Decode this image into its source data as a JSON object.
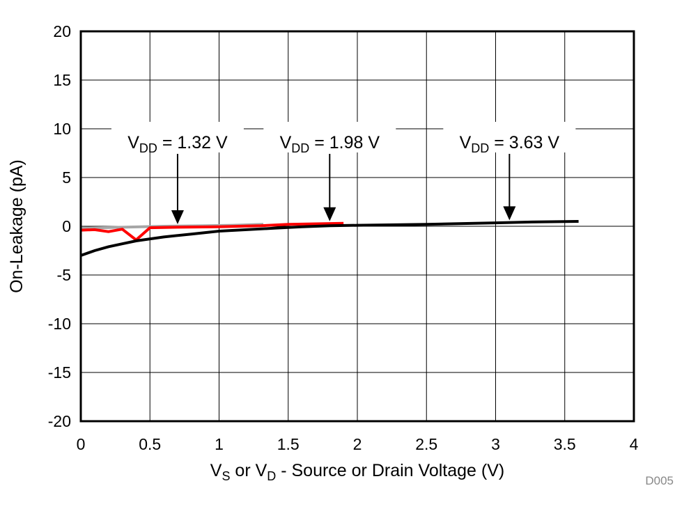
{
  "chart_data": {
    "type": "line",
    "title": "",
    "xlabel": {
      "pre": "V",
      "sub1": "S",
      "mid": " or V",
      "sub2": "D",
      "post": " - Source or Drain Voltage (V)"
    },
    "ylabel": "On-Leakage (pA)",
    "xlim": [
      0,
      4
    ],
    "ylim": [
      -20,
      20
    ],
    "xticks": [
      "0",
      "0.5",
      "1",
      "1.5",
      "2",
      "2.5",
      "3",
      "3.5",
      "4"
    ],
    "yticks": [
      "-20",
      "-15",
      "-10",
      "-5",
      "0",
      "5",
      "10",
      "15",
      "20"
    ],
    "grid": true,
    "watermark": "D005",
    "series": [
      {
        "color": "#a6a6a6",
        "x": [
          0,
          0.3,
          0.6,
          0.9,
          1.1,
          1.32
        ],
        "y": [
          -0.2,
          -0.1,
          0,
          0.05,
          0.1,
          0.2
        ]
      },
      {
        "color": "#ff0000",
        "x": [
          0,
          0.1,
          0.2,
          0.3,
          0.4,
          0.5,
          0.7,
          1.0,
          1.3,
          1.5,
          1.7,
          1.9
        ],
        "y": [
          -0.4,
          -0.35,
          -0.55,
          -0.3,
          -1.4,
          -0.15,
          -0.1,
          -0.05,
          0.05,
          0.2,
          0.25,
          0.3
        ]
      },
      {
        "color": "#000000",
        "x": [
          0,
          0.1,
          0.2,
          0.3,
          0.4,
          0.6,
          0.8,
          1.0,
          1.2,
          1.4,
          1.6,
          1.8,
          2.0,
          2.5,
          3.0,
          3.3,
          3.6
        ],
        "y": [
          -3.0,
          -2.5,
          -2.1,
          -1.8,
          -1.5,
          -1.1,
          -0.8,
          -0.5,
          -0.35,
          -0.2,
          -0.05,
          0.05,
          0.1,
          0.2,
          0.35,
          0.45,
          0.5
        ]
      }
    ],
    "annotations": [
      {
        "pre": "V",
        "sub": "DD",
        "post": " = 1.32 V",
        "x": 0.7,
        "y": 0,
        "label_y": 9
      },
      {
        "pre": "V",
        "sub": "DD",
        "post": " = 1.98 V",
        "x": 1.8,
        "y": 0.3,
        "label_y": 9
      },
      {
        "pre": "V",
        "sub": "DD",
        "post": " = 3.63 V",
        "x": 3.1,
        "y": 0.4,
        "label_y": 9
      }
    ]
  }
}
